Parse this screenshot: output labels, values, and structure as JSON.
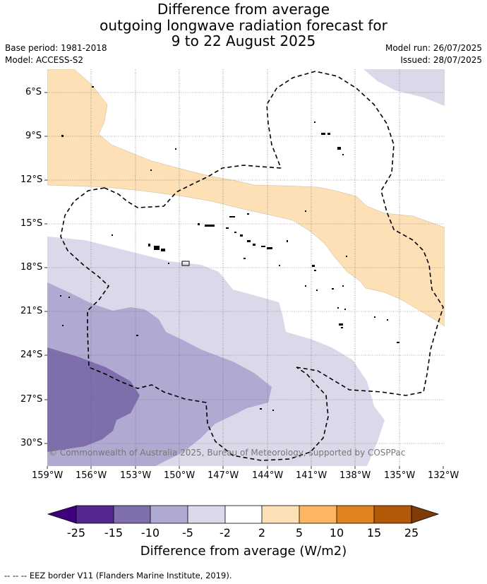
{
  "title": {
    "line1": "Difference from average",
    "line2": "outgoing longwave radiation forecast for",
    "line3": "9 to 22 August 2025"
  },
  "meta": {
    "base_period": "Base period: 1981-2018",
    "model": "Model: ACCESS-S2",
    "model_run": "Model run: 26/07/2025",
    "issued": "Issued: 28/07/2025"
  },
  "axes": {
    "lat_labels": [
      "6°S",
      "9°S",
      "12°S",
      "15°S",
      "18°S",
      "21°S",
      "24°S",
      "27°S",
      "30°S"
    ],
    "lon_labels": [
      "159°W",
      "156°W",
      "153°W",
      "150°W",
      "147°W",
      "144°W",
      "141°W",
      "138°W",
      "135°W",
      "132°W"
    ]
  },
  "copyright": "© Commonwealth of Australia 2025, Bureau of Meteorology, supported by COSPPac",
  "colorbar": {
    "title": "Difference from average (W/m2)",
    "labels": [
      "-25",
      "-15",
      "-10",
      "-5",
      "-2",
      "2",
      "5",
      "10",
      "15",
      "25"
    ],
    "colors": [
      "#3f007d",
      "#54278f",
      "#7e6eab",
      "#b0a9d1",
      "#dad9ea",
      "#ffffff",
      "#fde0b6",
      "#fdb762",
      "#e0821e",
      "#b35806",
      "#7f3b08"
    ]
  },
  "footer": "--  --  -- EEZ border V11 (Flanders Marine Institute, 2019)."
}
